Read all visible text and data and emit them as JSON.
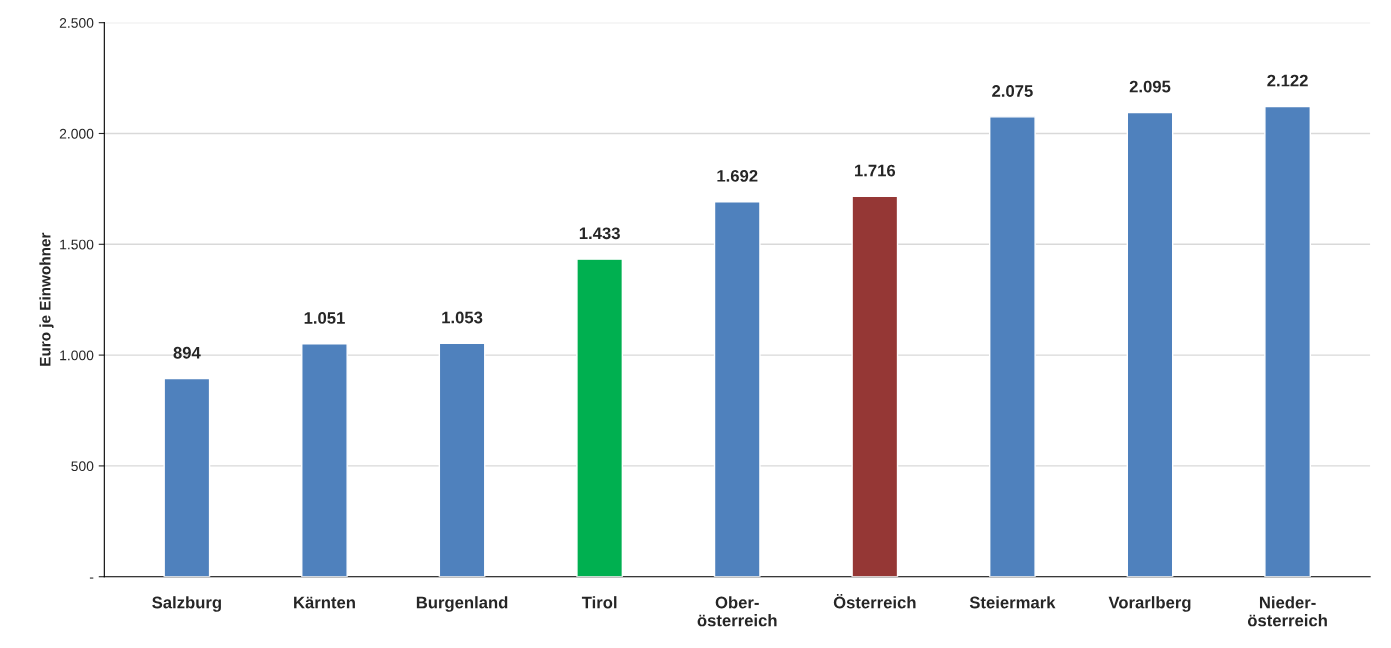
{
  "chart_data": {
    "type": "bar",
    "ylabel": "Euro je Einwohner",
    "categories": [
      "Salzburg",
      "Kärnten",
      "Burgenland",
      "Tirol",
      "Ober-\nösterreich",
      "Österreich",
      "Steiermark",
      "Vorarlberg",
      "Nieder-\nösterreich"
    ],
    "values": [
      894,
      1051,
      1053,
      1433,
      1692,
      1716,
      2075,
      2095,
      2122
    ],
    "colors": [
      "#4f81bd",
      "#4f81bd",
      "#4f81bd",
      "#00b050",
      "#4f81bd",
      "#953735",
      "#4f81bd",
      "#4f81bd",
      "#4f81bd"
    ],
    "value_labels": [
      "894",
      "1.051",
      "1.053",
      "1.433",
      "1.692",
      "1.716",
      "2.075",
      "2.095",
      "2.122"
    ],
    "ylim": [
      0,
      2500
    ],
    "yticks": [
      {
        "value": 0,
        "label": "-"
      },
      500,
      {
        "value": 1000,
        "label": "1.000"
      },
      {
        "value": 1500,
        "label": "1.500"
      },
      {
        "value": 2000,
        "label": "2.000"
      },
      {
        "value": 2500,
        "label": "2.500"
      }
    ],
    "grid": "y"
  }
}
